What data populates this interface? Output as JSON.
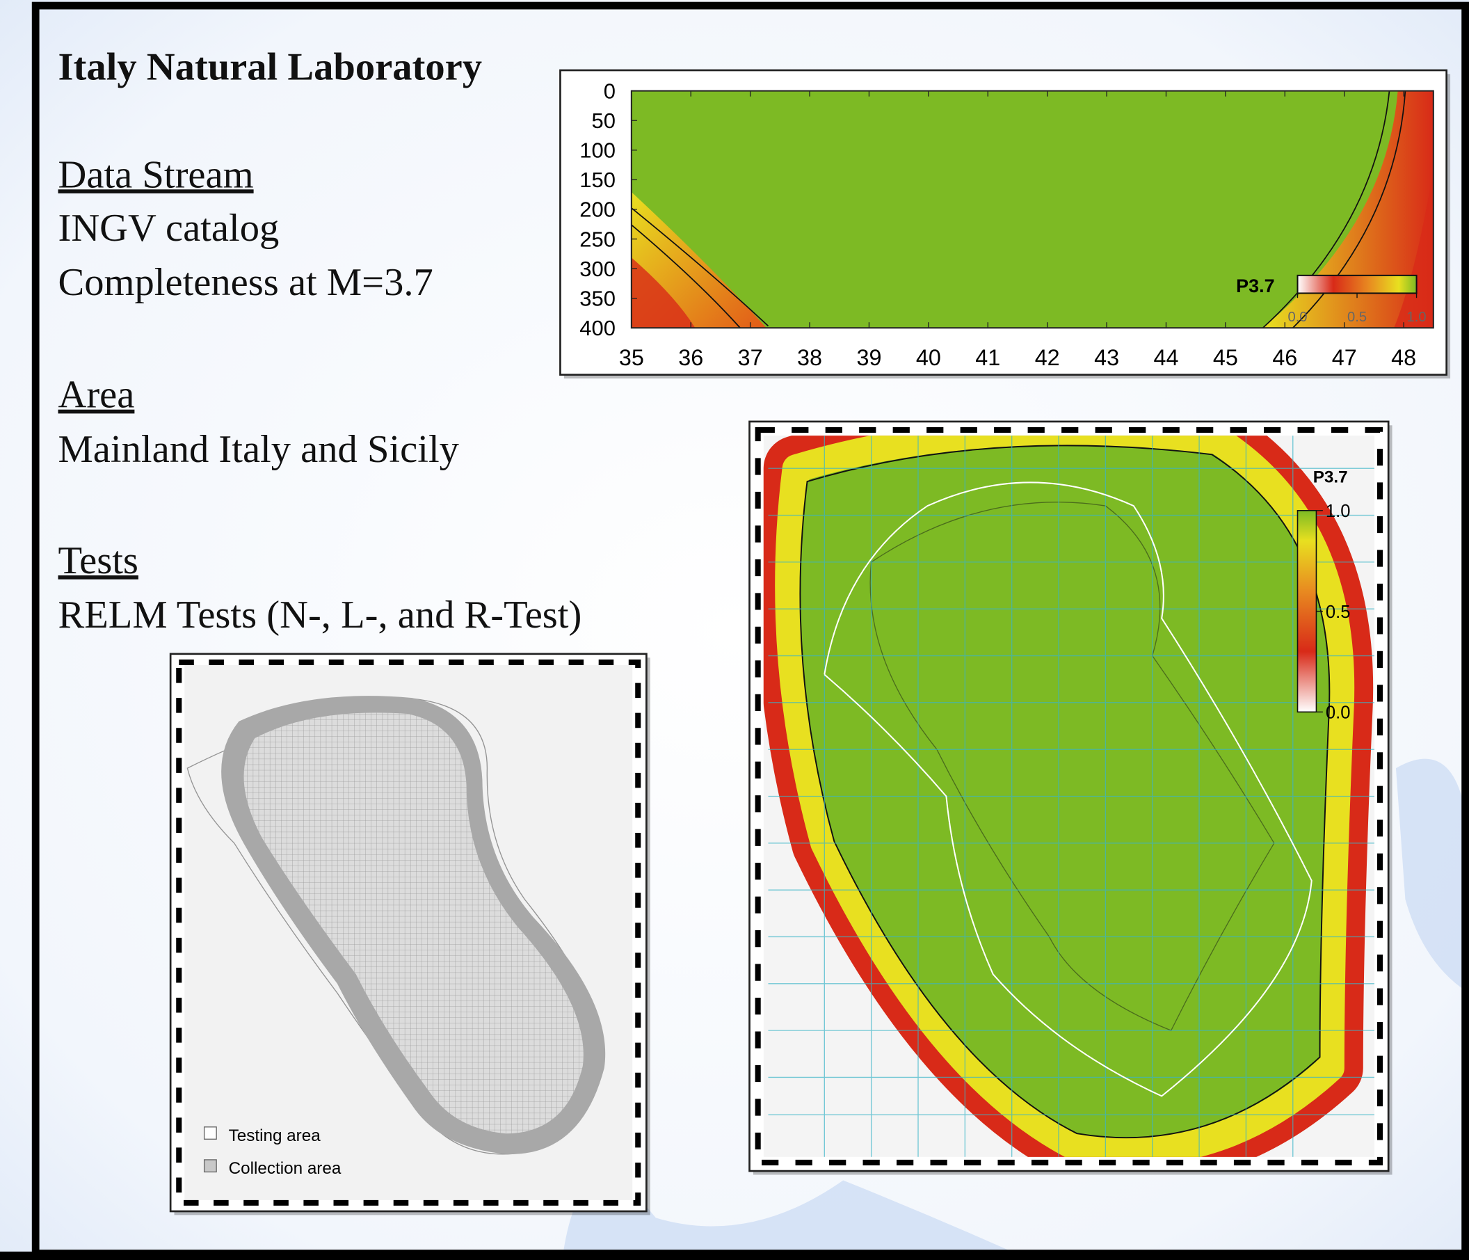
{
  "slide": {
    "title": "Italy Natural Laboratory",
    "sections": [
      {
        "heading": "Data Stream",
        "lines": [
          "INGV catalog",
          "Completeness at M=3.7"
        ]
      },
      {
        "heading": "Area",
        "lines": [
          "Mainland Italy and Sicily"
        ]
      },
      {
        "heading": "Tests",
        "lines": [
          "RELM Tests (N-, L-, and R-Test)"
        ]
      }
    ]
  },
  "depth_chart": {
    "xlim": [
      35,
      48.5
    ],
    "xticks": [
      35,
      36,
      37,
      38,
      39,
      40,
      41,
      42,
      43,
      44,
      45,
      46,
      47,
      48
    ],
    "ylim": [
      0,
      400
    ],
    "yticks": [
      0,
      50,
      100,
      150,
      200,
      250,
      300,
      350,
      400
    ],
    "colorbar": {
      "label": "P3.7",
      "ticks": [
        {
          "value": 0,
          "label": "0.0"
        },
        {
          "value": 0.5,
          "label": "0.5"
        },
        {
          "value": 1,
          "label": "1.0"
        }
      ]
    }
  },
  "area_map": {
    "legend": [
      "Testing area",
      "Collection area"
    ]
  },
  "probability_map": {
    "colorbar": {
      "label": "P3.7",
      "ticks": [
        {
          "value": 1,
          "label": "1.0"
        },
        {
          "value": 0.5,
          "label": "0.5"
        },
        {
          "value": 0,
          "label": "0.0"
        }
      ]
    }
  }
}
